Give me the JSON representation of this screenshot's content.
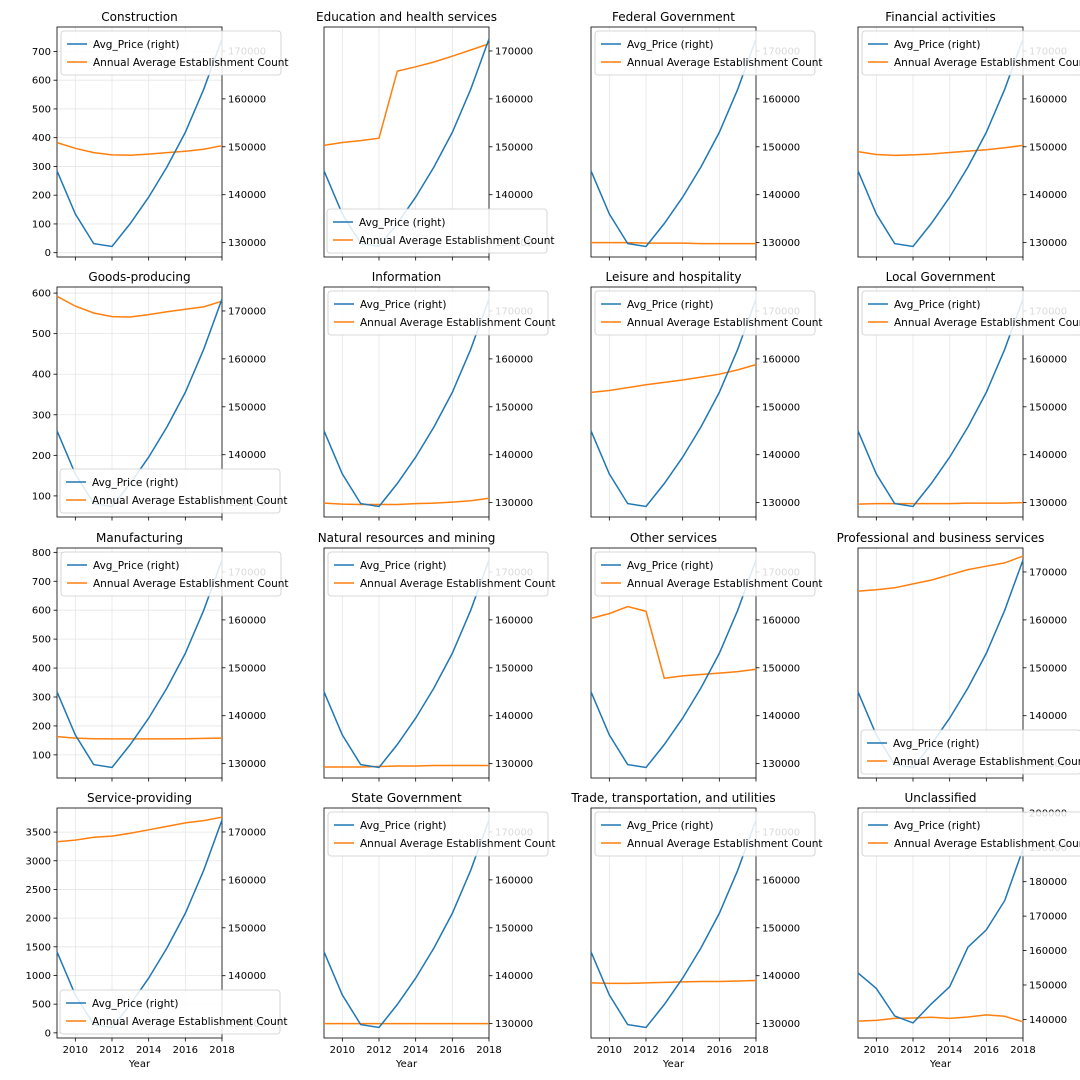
{
  "chart_data": {
    "type": "line",
    "years": [
      2009,
      2010,
      2011,
      2012,
      2013,
      2014,
      2015,
      2016,
      2017,
      2018
    ],
    "x_ticks": [
      2010,
      2012,
      2014,
      2016,
      2018
    ],
    "xlim": [
      2009,
      2018
    ],
    "xlabel": "Year",
    "legend_labels": [
      "Avg_Price (right)",
      "Annual Average Establishment Count"
    ],
    "colors": {
      "avg_price": "#1f77b4",
      "establishments": "#ff7f0e"
    },
    "grid": true,
    "avg_price": [
      145000,
      136000,
      129800,
      129200,
      134000,
      139500,
      145800,
      153000,
      162000,
      172500
    ],
    "avg_price_unclassified": [
      153500,
      149000,
      141000,
      139000,
      144500,
      149500,
      161000,
      166000,
      174500,
      189500
    ],
    "panels": [
      {
        "title": "Construction",
        "establishments": [
          383,
          363,
          348,
          340,
          339,
          343,
          348,
          353,
          360,
          372
        ],
        "ylim": [
          -15,
          785
        ],
        "yticks": [
          0,
          100,
          200,
          300,
          400,
          500,
          600,
          700
        ],
        "rylim": [
          127000,
          175000
        ],
        "ryticks": [
          130000,
          140000,
          150000,
          160000,
          170000
        ],
        "legend": "top-left"
      },
      {
        "title": "Education and health services",
        "establishments": [
          150300,
          150900,
          151300,
          151800,
          165800,
          166700,
          167700,
          168900,
          170200,
          171500
        ],
        "ylim": [
          127000,
          175000
        ],
        "yticks": [],
        "rylim": [
          127000,
          175000
        ],
        "ryticks": [
          130000,
          140000,
          150000,
          160000,
          170000
        ],
        "legend": "bottom-right"
      },
      {
        "title": "Federal Government",
        "establishments": [
          130000,
          130000,
          130000,
          129900,
          129900,
          129900,
          129800,
          129800,
          129800,
          129800
        ],
        "ylim": [
          127000,
          175000
        ],
        "yticks": [],
        "rylim": [
          127000,
          175000
        ],
        "ryticks": [
          130000,
          140000,
          150000,
          160000,
          170000
        ],
        "legend": "top-left"
      },
      {
        "title": "Financial activities",
        "establishments": [
          149000,
          148400,
          148200,
          148300,
          148500,
          148800,
          149100,
          149400,
          149800,
          150300
        ],
        "ylim": [
          127000,
          175000
        ],
        "yticks": [],
        "rylim": [
          127000,
          175000
        ],
        "ryticks": [
          130000,
          140000,
          150000,
          160000,
          170000
        ],
        "legend": "top-left"
      },
      {
        "title": "Goods-producing",
        "establishments": [
          592,
          568,
          551,
          542,
          541,
          547,
          554,
          560,
          566,
          580
        ],
        "ylim": [
          48,
          615
        ],
        "yticks": [
          100,
          200,
          300,
          400,
          500,
          600
        ],
        "rylim": [
          127000,
          175000
        ],
        "ryticks": [
          130000,
          140000,
          150000,
          160000,
          170000
        ],
        "legend": "bottom-right"
      },
      {
        "title": "Information",
        "establishments": [
          129900,
          129700,
          129600,
          129600,
          129600,
          129800,
          129900,
          130100,
          130400,
          130900
        ],
        "ylim": [
          127000,
          175000
        ],
        "yticks": [],
        "rylim": [
          127000,
          175000
        ],
        "ryticks": [
          130000,
          140000,
          150000,
          160000,
          170000
        ],
        "legend": "top-left"
      },
      {
        "title": "Leisure and hospitality",
        "establishments": [
          153000,
          153400,
          154000,
          154600,
          155100,
          155600,
          156200,
          156800,
          157700,
          158800
        ],
        "ylim": [
          127000,
          175000
        ],
        "yticks": [],
        "rylim": [
          127000,
          175000
        ],
        "ryticks": [
          130000,
          140000,
          150000,
          160000,
          170000
        ],
        "legend": "top-left"
      },
      {
        "title": "Local Government",
        "establishments": [
          129700,
          129800,
          129800,
          129800,
          129800,
          129800,
          129900,
          129900,
          129900,
          130000
        ],
        "ylim": [
          127000,
          175000
        ],
        "yticks": [],
        "rylim": [
          127000,
          175000
        ],
        "ryticks": [
          130000,
          140000,
          150000,
          160000,
          170000
        ],
        "legend": "top-left"
      },
      {
        "title": "Manufacturing",
        "establishments": [
          163,
          158,
          156,
          155,
          155,
          155,
          155,
          156,
          157,
          158
        ],
        "ylim": [
          20,
          815
        ],
        "yticks": [
          100,
          200,
          300,
          400,
          500,
          600,
          700,
          800
        ],
        "rylim": [
          127000,
          175000
        ],
        "ryticks": [
          130000,
          140000,
          150000,
          160000,
          170000
        ],
        "legend": "top-left"
      },
      {
        "title": "Natural resources and mining",
        "establishments": [
          129300,
          129300,
          129300,
          129400,
          129500,
          129500,
          129600,
          129600,
          129600,
          129600
        ],
        "ylim": [
          127000,
          175000
        ],
        "yticks": [],
        "rylim": [
          127000,
          175000
        ],
        "ryticks": [
          130000,
          140000,
          150000,
          160000,
          170000
        ],
        "legend": "top-left"
      },
      {
        "title": "Other services",
        "establishments": [
          160300,
          161300,
          162800,
          161800,
          147800,
          148300,
          148600,
          148900,
          149200,
          149700
        ],
        "ylim": [
          127000,
          175000
        ],
        "yticks": [],
        "rylim": [
          127000,
          175000
        ],
        "ryticks": [
          130000,
          140000,
          150000,
          160000,
          170000
        ],
        "legend": "top-left"
      },
      {
        "title": "Professional and business services",
        "establishments": [
          166000,
          166300,
          166700,
          167500,
          168300,
          169400,
          170500,
          171200,
          171900,
          173300
        ],
        "ylim": [
          127000,
          175000
        ],
        "yticks": [],
        "rylim": [
          127000,
          175000
        ],
        "ryticks": [
          130000,
          140000,
          150000,
          160000,
          170000
        ],
        "legend": "bottom-right"
      },
      {
        "title": "Service-providing",
        "establishments": [
          3330,
          3360,
          3410,
          3430,
          3480,
          3540,
          3600,
          3660,
          3700,
          3760
        ],
        "ylim": [
          -90,
          3920
        ],
        "yticks": [
          0,
          500,
          1000,
          1500,
          2000,
          2500,
          3000,
          3500
        ],
        "rylim": [
          127000,
          175000
        ],
        "ryticks": [
          130000,
          140000,
          150000,
          160000,
          170000
        ],
        "legend": "bottom-right"
      },
      {
        "title": "State Government",
        "establishments": [
          130000,
          130000,
          130000,
          130000,
          130000,
          130000,
          130000,
          130000,
          130000,
          130000
        ],
        "ylim": [
          127000,
          175000
        ],
        "yticks": [],
        "rylim": [
          127000,
          175000
        ],
        "ryticks": [
          130000,
          140000,
          150000,
          160000,
          170000
        ],
        "legend": "top-left"
      },
      {
        "title": "Trade, transportation, and utilities",
        "establishments": [
          138500,
          138400,
          138400,
          138500,
          138600,
          138700,
          138800,
          138800,
          138900,
          139000
        ],
        "ylim": [
          127000,
          175000
        ],
        "yticks": [],
        "rylim": [
          127000,
          175000
        ],
        "ryticks": [
          130000,
          140000,
          150000,
          160000,
          170000
        ],
        "legend": "top-left"
      },
      {
        "title": "Unclassified",
        "establishments": [
          139500,
          139700,
          140300,
          140400,
          140600,
          140300,
          140700,
          141300,
          140900,
          139300
        ],
        "ylim": [
          134600,
          201400
        ],
        "yticks": [],
        "rylim": [
          134600,
          201400
        ],
        "ryticks": [
          140000,
          150000,
          160000,
          170000,
          180000,
          190000,
          200000
        ],
        "legend": "top-left",
        "price_key": "avg_price_unclassified"
      }
    ]
  }
}
